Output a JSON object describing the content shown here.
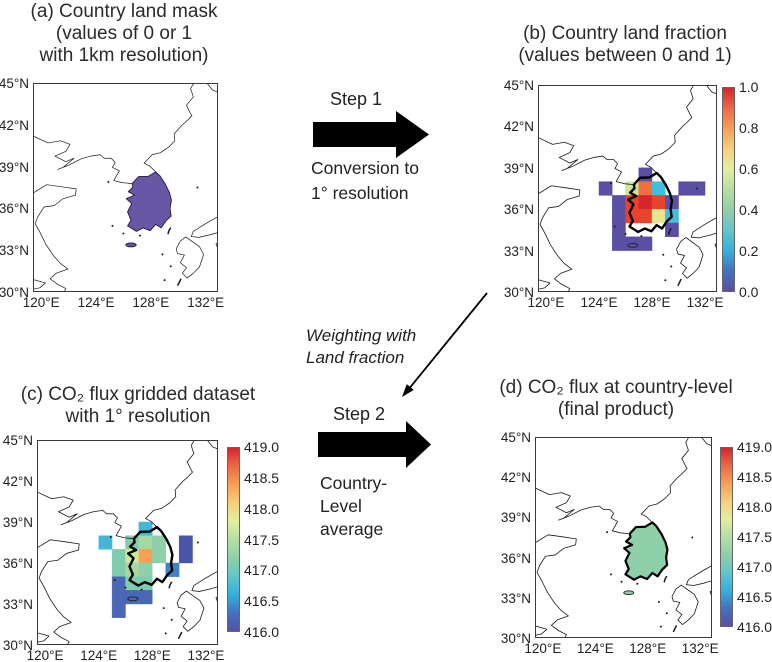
{
  "figure": {
    "background": "#ffffff",
    "panels": {
      "a": {
        "title_lines": [
          "(a) Country land mask",
          "(values of 0 or 1",
          "with 1km resolution)"
        ]
      },
      "b": {
        "title_lines": [
          "(b) Country land fraction",
          "(values between 0 and 1)"
        ],
        "colorbar_ticks": [
          "1.0",
          "0.8",
          "0.6",
          "0.4",
          "0.2",
          "0.0"
        ]
      },
      "c": {
        "title_lines": [
          "(c) CO₂ flux gridded dataset",
          "with 1° resolution"
        ],
        "colorbar_ticks": [
          "419.0",
          "418.5",
          "418.0",
          "417.5",
          "417.0",
          "416.5",
          "416.0"
        ]
      },
      "d": {
        "title_lines": [
          "(d) CO₂ flux at country-level",
          "(final product)"
        ],
        "colorbar_ticks": [
          "419.0",
          "418.5",
          "418.0",
          "417.5",
          "417.0",
          "416.5",
          "416.0"
        ]
      }
    },
    "steps": {
      "step1": {
        "label": "Step 1",
        "desc_lines": [
          "Conversion to",
          "1° resolution"
        ]
      },
      "step2": {
        "label": "Step 2",
        "desc_lines": [
          "Country-",
          "Level",
          "average"
        ]
      },
      "weighting": {
        "lines": [
          "Weighting with",
          "Land fraction"
        ]
      }
    },
    "axis": {
      "lat_tick_labels": [
        "45°N",
        "42°N",
        "39°N",
        "36°N",
        "33°N",
        "30°N"
      ],
      "lon_tick_labels": [
        "120°E",
        "124°E",
        "128°E",
        "132°E"
      ]
    },
    "colors": {
      "country_mask_purple": "#6757a5",
      "country_mean_green": "#8ed0a9",
      "coastline": "#1a1a1a",
      "thick_outline": "#000000"
    }
  },
  "chart_data": [
    {
      "panel": "a",
      "type": "map",
      "title": "(a) Country land mask (values of 0 or 1 with 1km resolution)",
      "lat_ticks": [
        45,
        42,
        39,
        36,
        33,
        30
      ],
      "lon_ticks": [
        120,
        124,
        128,
        132
      ],
      "lat_range": [
        30,
        45
      ],
      "lon_range": [
        119.4,
        132.9
      ],
      "mask_value": 1,
      "mask_color": "#6757a5",
      "note": "South Korea mask = 1 (purple fill), all other area = 0"
    },
    {
      "panel": "b",
      "type": "map-grid",
      "title": "(b) Country land fraction (values between 0 and 1)",
      "lat_ticks": [
        45,
        42,
        39,
        36,
        33,
        30
      ],
      "lon_ticks": [
        120,
        124,
        128,
        132
      ],
      "lat_range": [
        30,
        45
      ],
      "lon_range": [
        119.4,
        132.9
      ],
      "colorbar": {
        "min": 0.0,
        "max": 1.0,
        "tick_values": [
          1.0,
          0.8,
          0.6,
          0.4,
          0.2,
          0.0
        ]
      },
      "colormap_stops": [
        "#5a4fa5",
        "#4472c0",
        "#35b0dc",
        "#62c6cb",
        "#8ed0a9",
        "#b5dfa2",
        "#e2ef9d",
        "#f6d07c",
        "#f7a055",
        "#ec6a45",
        "#d7252b"
      ],
      "cells": [
        {
          "lon": 127,
          "lat": 38,
          "value": 0.05,
          "color": "#5a4fa5"
        },
        {
          "lon": 124,
          "lat": 37,
          "value": 0.05,
          "color": "#5a4fa5"
        },
        {
          "lon": 126,
          "lat": 37,
          "value": 0.55,
          "color": "#c9e69c"
        },
        {
          "lon": 127,
          "lat": 37,
          "value": 0.85,
          "color": "#f1703f"
        },
        {
          "lon": 128,
          "lat": 37,
          "value": 0.3,
          "color": "#3fbedd"
        },
        {
          "lon": 130,
          "lat": 37,
          "value": 0.05,
          "color": "#5a4fa5"
        },
        {
          "lon": 131,
          "lat": 37,
          "value": 0.05,
          "color": "#5a4fa5"
        },
        {
          "lon": 125,
          "lat": 36,
          "value": 0.05,
          "color": "#5a4fa5"
        },
        {
          "lon": 126,
          "lat": 36,
          "value": 0.95,
          "color": "#e8432e"
        },
        {
          "lon": 127,
          "lat": 36,
          "value": 1.0,
          "color": "#d62629"
        },
        {
          "lon": 128,
          "lat": 36,
          "value": 0.95,
          "color": "#e8432e"
        },
        {
          "lon": 129,
          "lat": 36,
          "value": 0.05,
          "color": "#5a4fa5"
        },
        {
          "lon": 125,
          "lat": 35,
          "value": 0.05,
          "color": "#5a4fa5"
        },
        {
          "lon": 126,
          "lat": 35,
          "value": 0.95,
          "color": "#e8432e"
        },
        {
          "lon": 127,
          "lat": 35,
          "value": 0.95,
          "color": "#e8432e"
        },
        {
          "lon": 128,
          "lat": 35,
          "value": 0.6,
          "color": "#e9e492"
        },
        {
          "lon": 129,
          "lat": 35,
          "value": 0.3,
          "color": "#3fbedd"
        },
        {
          "lon": 125,
          "lat": 34,
          "value": 0.05,
          "color": "#5a4fa5"
        },
        {
          "lon": 129,
          "lat": 34,
          "value": 0.05,
          "color": "#5a4fa5"
        },
        {
          "lon": 125,
          "lat": 33,
          "value": 0.05,
          "color": "#5a4fa5"
        },
        {
          "lon": 126,
          "lat": 33,
          "value": 0.05,
          "color": "#5a4fa5"
        },
        {
          "lon": 127,
          "lat": 33,
          "value": 0.05,
          "color": "#5a4fa5"
        }
      ]
    },
    {
      "panel": "c",
      "type": "map-grid",
      "title": "(c) CO₂ flux gridded dataset with 1° resolution",
      "lat_ticks": [
        45,
        42,
        39,
        36,
        33,
        30
      ],
      "lon_ticks": [
        120,
        124,
        128,
        132
      ],
      "lat_range": [
        30,
        45
      ],
      "lon_range": [
        119.4,
        132.9
      ],
      "colorbar": {
        "min": 416.0,
        "max": 419.0,
        "tick_values": [
          419.0,
          418.5,
          418.0,
          417.5,
          417.0,
          416.5,
          416.0
        ]
      },
      "colormap_stops": [
        "#5a4fa5",
        "#4472c0",
        "#35b0dc",
        "#62c6cb",
        "#8ed0a9",
        "#b5dfa2",
        "#e2ef9d",
        "#f6d07c",
        "#f7a055",
        "#ec6a45",
        "#d7252b"
      ],
      "cells": [
        {
          "lon": 127,
          "lat": 38,
          "value": 417.0,
          "color": "#45b6d8"
        },
        {
          "lon": 124,
          "lat": 37,
          "value": 417.0,
          "color": "#45b6d8"
        },
        {
          "lon": 126,
          "lat": 37,
          "value": 417.2,
          "color": "#7fccae"
        },
        {
          "lon": 127,
          "lat": 37,
          "value": 417.45,
          "color": "#a6d7a0"
        },
        {
          "lon": 128,
          "lat": 37,
          "value": 417.3,
          "color": "#8ed0a9"
        },
        {
          "lon": 130,
          "lat": 37,
          "value": 416.1,
          "color": "#4a55a8"
        },
        {
          "lon": 125,
          "lat": 36,
          "value": 417.2,
          "color": "#7fccae"
        },
        {
          "lon": 126,
          "lat": 36,
          "value": 417.7,
          "color": "#cbe79b"
        },
        {
          "lon": 127,
          "lat": 36,
          "value": 418.3,
          "color": "#f5a055"
        },
        {
          "lon": 128,
          "lat": 36,
          "value": 417.3,
          "color": "#8ed0a9"
        },
        {
          "lon": 130,
          "lat": 36,
          "value": 416.1,
          "color": "#4a55a8"
        },
        {
          "lon": 125,
          "lat": 35,
          "value": 417.2,
          "color": "#7fccae"
        },
        {
          "lon": 126,
          "lat": 35,
          "value": 417.45,
          "color": "#a6d7a0"
        },
        {
          "lon": 127,
          "lat": 35,
          "value": 417.3,
          "color": "#8ed0a9"
        },
        {
          "lon": 129,
          "lat": 35,
          "value": 416.6,
          "color": "#4380c6"
        },
        {
          "lon": 125,
          "lat": 34,
          "value": 416.5,
          "color": "#4a67b6"
        },
        {
          "lon": 126,
          "lat": 34,
          "value": 417.2,
          "color": "#7fccae"
        },
        {
          "lon": 127,
          "lat": 34,
          "value": 417.2,
          "color": "#7fccae"
        },
        {
          "lon": 125,
          "lat": 33,
          "value": 416.5,
          "color": "#4a67b6"
        },
        {
          "lon": 126,
          "lat": 33,
          "value": 416.5,
          "color": "#4a67b6"
        },
        {
          "lon": 127,
          "lat": 33,
          "value": 416.5,
          "color": "#4a67b6"
        },
        {
          "lon": 125,
          "lat": 32,
          "value": 416.5,
          "color": "#4a67b6"
        }
      ]
    },
    {
      "panel": "d",
      "type": "map",
      "title": "(d) CO₂ flux at country-level (final product)",
      "lat_ticks": [
        45,
        42,
        39,
        36,
        33,
        30
      ],
      "lon_ticks": [
        120,
        124,
        128,
        132
      ],
      "lat_range": [
        30,
        45
      ],
      "lon_range": [
        119.4,
        132.9
      ],
      "colorbar": {
        "min": 416.0,
        "max": 419.0,
        "tick_values": [
          419.0,
          418.5,
          418.0,
          417.5,
          417.0,
          416.5,
          416.0
        ]
      },
      "colormap_stops": [
        "#5a4fa5",
        "#4472c0",
        "#35b0dc",
        "#62c6cb",
        "#8ed0a9",
        "#b5dfa2",
        "#e2ef9d",
        "#f6d07c",
        "#f7a055",
        "#ec6a45",
        "#d7252b"
      ],
      "country_value": 417.4,
      "country_color": "#8ed0a9"
    }
  ]
}
